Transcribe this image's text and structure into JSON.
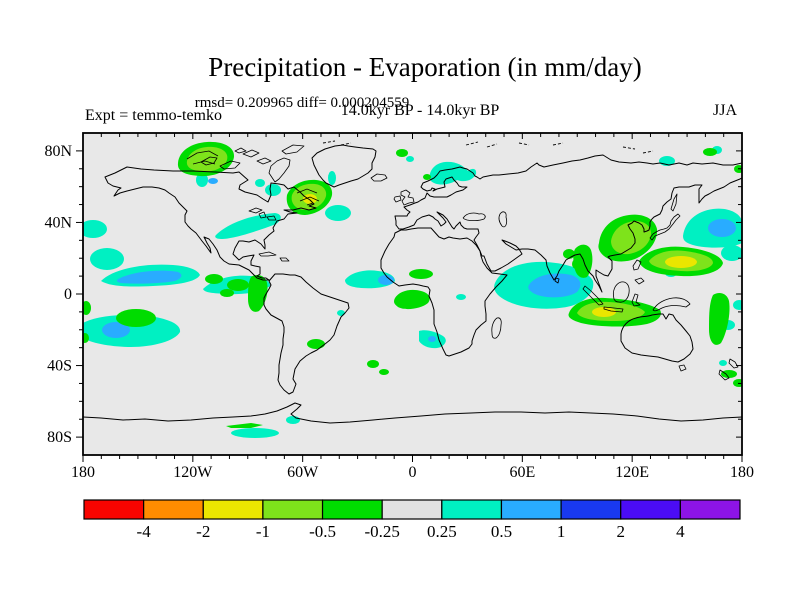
{
  "figure": {
    "title": "Precipitation - Evaporation (in mm/day)",
    "stats": "rmsd= 0.209965 diff= 0.000204559",
    "experiment": "Expt = temmo-temko",
    "period": "14.0kyr BP - 14.0kyr BP",
    "season": "JJA"
  },
  "chart_data": {
    "type": "heatmap",
    "subtype": "filled-contour-world-map",
    "title": "Precipitation - Evaporation (in mm/day)",
    "units": "mm/day",
    "experiment": "temmo-temko",
    "period": "14.0kyr BP - 14.0kyr BP",
    "season": "JJA",
    "rmsd": 0.209965,
    "diff": 0.000204559,
    "map_background": "#e8e8e8",
    "x_axis": {
      "range": [
        -180,
        180
      ],
      "minor_step_deg": 10,
      "major_ticks": [
        {
          "lon": -180,
          "label": "180"
        },
        {
          "lon": -120,
          "label": "120W"
        },
        {
          "lon": -60,
          "label": "60W"
        },
        {
          "lon": 0,
          "label": "0"
        },
        {
          "lon": 60,
          "label": "60E"
        },
        {
          "lon": 120,
          "label": "120E"
        },
        {
          "lon": 180,
          "label": "180"
        }
      ]
    },
    "y_axis": {
      "range": [
        -90,
        90
      ],
      "minor_step_deg": 10,
      "major_ticks": [
        {
          "lat": 80,
          "label": "80N"
        },
        {
          "lat": 40,
          "label": "40N"
        },
        {
          "lat": 0,
          "label": "0"
        },
        {
          "lat": -40,
          "label": "40S"
        },
        {
          "lat": -80,
          "label": "80S"
        }
      ]
    },
    "colorbar": {
      "labels": [
        "-4",
        "-2",
        "-1",
        "-0.5",
        "-0.25",
        "0.25",
        "0.5",
        "1",
        "2",
        "4"
      ],
      "colors": [
        "#f80400",
        "#ff8c00",
        "#ebe600",
        "#7ee31b",
        "#00dc00",
        "#e1e1e1",
        "#00f0c2",
        "#29acff",
        "#1939f0",
        "#4b0cf5",
        "#8d14e6"
      ],
      "neutral_band": "0.25 to -0.25 shown in gray"
    },
    "anomaly_regions": [
      {
        "area": "Alaska / NW Canadian Arctic",
        "lon": -125,
        "lat": 72,
        "value": "-0.5 to -0.25 (green / yellow-green)"
      },
      {
        "area": "Labrador / NE Canada",
        "lon": -62,
        "lat": 55,
        "value": "-1 to -0.5 (yellow-green, yellow core)"
      },
      {
        "area": "North Atlantic SE of Greenland",
        "lon": -40,
        "lat": 50,
        "value": "0.25 to 0.5 (cyan)"
      },
      {
        "area": "Central North America",
        "lon": -90,
        "lat": 42,
        "value": "0.25 to 0.5 (cyan band)"
      },
      {
        "area": "Scandinavia / Baltic",
        "lon": 20,
        "lat": 62,
        "value": "0.25 to 0.5 (cyan)"
      },
      {
        "area": "East Pacific ITCZ",
        "lon": -140,
        "lat": 7,
        "value": "0.5 to 1 (blue core in cyan band)"
      },
      {
        "area": "Caribbean / Central America",
        "lon": -85,
        "lat": 12,
        "value": "-0.5 to -0.25 (green patches)"
      },
      {
        "area": "Northern South America",
        "lon": -72,
        "lat": 0,
        "value": "-0.5 to -0.25 (green)"
      },
      {
        "area": "Gulf of Guinea",
        "lon": -15,
        "lat": 5,
        "value": "0.5 to 1 (blue spot in cyan)"
      },
      {
        "area": "West equatorial Africa coast",
        "lon": 5,
        "lat": -3,
        "value": "-0.5 to -0.25 (green)"
      },
      {
        "area": "Angola / SE Atlantic coast",
        "lon": 10,
        "lat": -22,
        "value": "0.25 to 1 (cyan wedge, blue dot)"
      },
      {
        "area": "Arabian Sea / India / Bay of Bengal",
        "lon": 70,
        "lat": 8,
        "value": "0.5 to 1 (blue core in large cyan area)"
      },
      {
        "area": "Indochina / SE Asia",
        "lon": 98,
        "lat": 18,
        "value": "-0.5 to -0.25 (green)"
      },
      {
        "area": "East China / Korea / Japan",
        "lon": 118,
        "lat": 30,
        "value": "-1 to -0.25 (green with yellow-green core)"
      },
      {
        "area": "NW Pacific east of Japan",
        "lon": 155,
        "lat": 35,
        "value": "0.5 to 1 (blue core in cyan)"
      },
      {
        "area": "Subtropical West Pacific",
        "lon": 148,
        "lat": 18,
        "value": "-2 to -0.5 (yellow core in green)"
      },
      {
        "area": "Indian Ocean NW of Australia",
        "lon": 105,
        "lat": -10,
        "value": "-2 to -0.5 (yellow core in yellow-green)"
      },
      {
        "area": "SE Pacific near 20S",
        "lon": -150,
        "lat": -20,
        "value": "0.25 to 1 (cyan/blue) with green to north"
      },
      {
        "area": "Coral Sea / SW Pacific",
        "lon": 172,
        "lat": -20,
        "value": "-0.5 to -0.25 (green)"
      },
      {
        "area": "New Zealand region",
        "lon": 172,
        "lat": -42,
        "value": "-0.5 to -0.25 (green)"
      },
      {
        "area": "Antarctic coast near 60W-30W",
        "lon": -45,
        "lat": -68,
        "value": "0.25 to 0.5 (cyan), -0.25 green strip"
      }
    ]
  }
}
